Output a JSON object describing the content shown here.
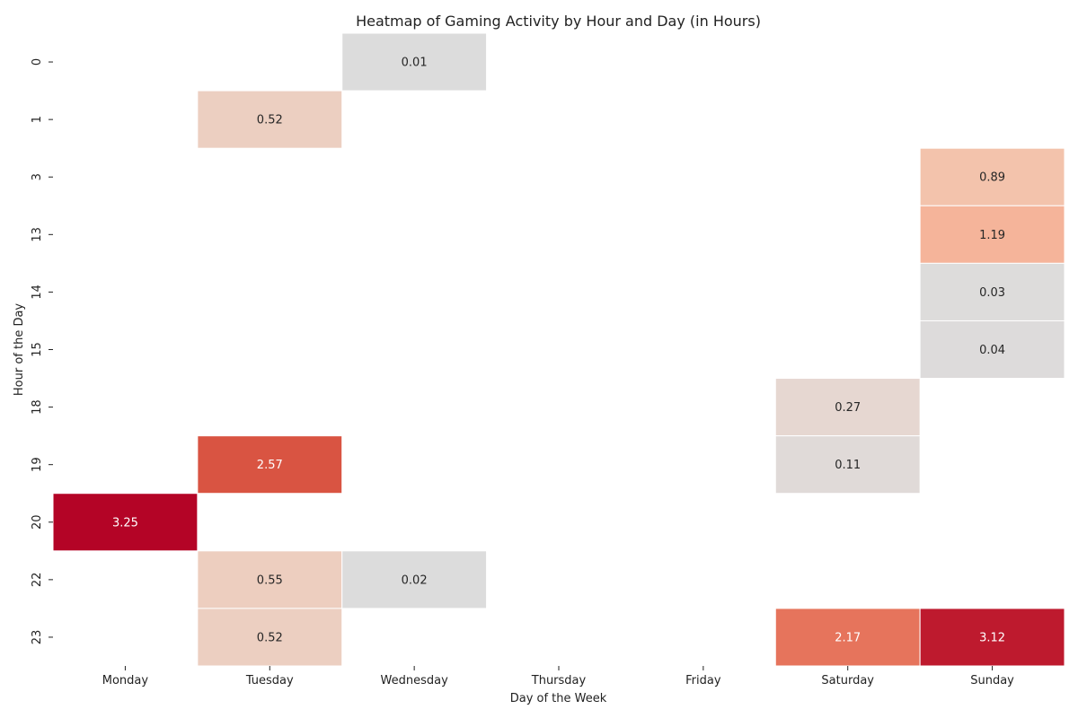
{
  "chart_data": {
    "type": "heatmap",
    "title": "Heatmap of Gaming Activity by Hour and Day (in Hours)",
    "xlabel": "Day of the Week",
    "ylabel": "Hour of the Day",
    "x_categories": [
      "Monday",
      "Tuesday",
      "Wednesday",
      "Thursday",
      "Friday",
      "Saturday",
      "Sunday"
    ],
    "y_categories": [
      "0",
      "1",
      "3",
      "13",
      "14",
      "15",
      "18",
      "19",
      "20",
      "22",
      "23"
    ],
    "cells": [
      {
        "hour": "0",
        "day": "Wednesday",
        "value": 0.01,
        "label": "0.01"
      },
      {
        "hour": "1",
        "day": "Tuesday",
        "value": 0.52,
        "label": "0.52"
      },
      {
        "hour": "3",
        "day": "Sunday",
        "value": 0.89,
        "label": "0.89"
      },
      {
        "hour": "13",
        "day": "Sunday",
        "value": 1.19,
        "label": "1.19"
      },
      {
        "hour": "14",
        "day": "Sunday",
        "value": 0.03,
        "label": "0.03"
      },
      {
        "hour": "15",
        "day": "Sunday",
        "value": 0.04,
        "label": "0.04"
      },
      {
        "hour": "18",
        "day": "Saturday",
        "value": 0.27,
        "label": "0.27"
      },
      {
        "hour": "19",
        "day": "Tuesday",
        "value": 2.57,
        "label": "2.57"
      },
      {
        "hour": "19",
        "day": "Saturday",
        "value": 0.11,
        "label": "0.11"
      },
      {
        "hour": "20",
        "day": "Monday",
        "value": 3.25,
        "label": "3.25"
      },
      {
        "hour": "22",
        "day": "Tuesday",
        "value": 0.55,
        "label": "0.55"
      },
      {
        "hour": "22",
        "day": "Wednesday",
        "value": 0.02,
        "label": "0.02"
      },
      {
        "hour": "23",
        "day": "Tuesday",
        "value": 0.52,
        "label": "0.52"
      },
      {
        "hour": "23",
        "day": "Saturday",
        "value": 2.17,
        "label": "2.17"
      },
      {
        "hour": "23",
        "day": "Sunday",
        "value": 3.12,
        "label": "3.12"
      }
    ],
    "colormap": "coolwarm",
    "missing_cells": "blank",
    "legend": "none"
  }
}
